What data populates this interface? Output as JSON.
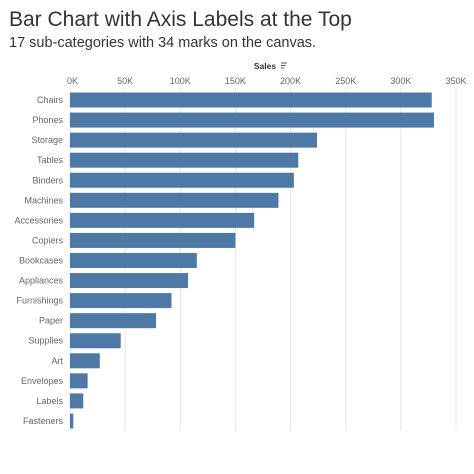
{
  "header": {
    "title": "Bar Chart with Axis Labels at the Top",
    "subtitle": "17 sub-categories with 34 marks on the canvas."
  },
  "chart_data": {
    "type": "bar",
    "orientation": "horizontal",
    "axis_position": "top",
    "xlabel": "Sales",
    "ylabel": "",
    "xlim": [
      0,
      350000
    ],
    "ticks": [
      0,
      50000,
      100000,
      150000,
      200000,
      250000,
      300000,
      350000
    ],
    "tick_labels": [
      "0K",
      "50K",
      "100K",
      "150K",
      "200K",
      "250K",
      "300K",
      "350K"
    ],
    "grid": true,
    "sort_icon": "sort-descending-icon",
    "bar_color": "#4e79a7",
    "categories": [
      "Chairs",
      "Phones",
      "Storage",
      "Tables",
      "Binders",
      "Machines",
      "Accessories",
      "Copiers",
      "Bookcases",
      "Appliances",
      "Furnishings",
      "Paper",
      "Supplies",
      "Art",
      "Envelopes",
      "Labels",
      "Fasteners"
    ],
    "values": [
      328000,
      330000,
      224000,
      207000,
      203000,
      189000,
      167000,
      150000,
      115000,
      107000,
      92000,
      78000,
      46000,
      27000,
      16000,
      12000,
      3000
    ]
  }
}
